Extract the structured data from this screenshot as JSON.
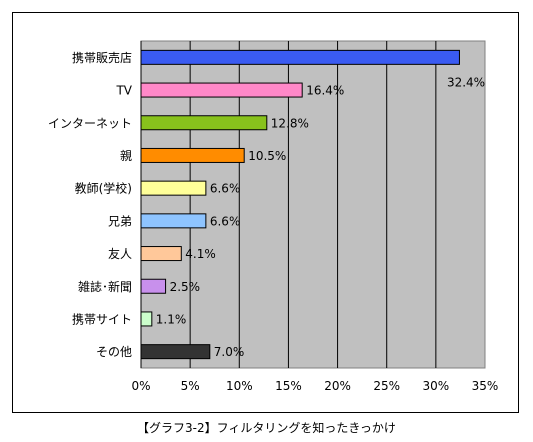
{
  "caption": "【グラフ3-2】フィルタリングを知ったきっかけ",
  "chart_data": {
    "type": "bar",
    "orientation": "horizontal",
    "categories": [
      "携帯販売店",
      "TV",
      "インターネット",
      "親",
      "教師(学校)",
      "兄弟",
      "友人",
      "雑誌･新聞",
      "携帯サイト",
      "その他"
    ],
    "values": [
      32.4,
      16.4,
      12.8,
      10.5,
      6.6,
      6.6,
      4.1,
      2.5,
      1.1,
      7.0
    ],
    "value_labels": [
      "32.4%",
      "16.4%",
      "12.8%",
      "10.5%",
      "6.6%",
      "6.6%",
      "4.1%",
      "2.5%",
      "1.1%",
      "7.0%"
    ],
    "colors": [
      "#3a5bf2",
      "#ff88c8",
      "#88c21c",
      "#ff8c00",
      "#ffff99",
      "#8ec4ff",
      "#ffc89a",
      "#c890ec",
      "#ccffcc",
      "#333333"
    ],
    "xlim": [
      0,
      35
    ],
    "xticks": [
      0,
      5,
      10,
      15,
      20,
      25,
      30,
      35
    ],
    "xtick_labels": [
      "0%",
      "5%",
      "10%",
      "15%",
      "20%",
      "25%",
      "30%",
      "35%"
    ],
    "title": "",
    "xlabel": "",
    "ylabel": "",
    "grid": true,
    "plot_background": "#c0c0c0"
  }
}
